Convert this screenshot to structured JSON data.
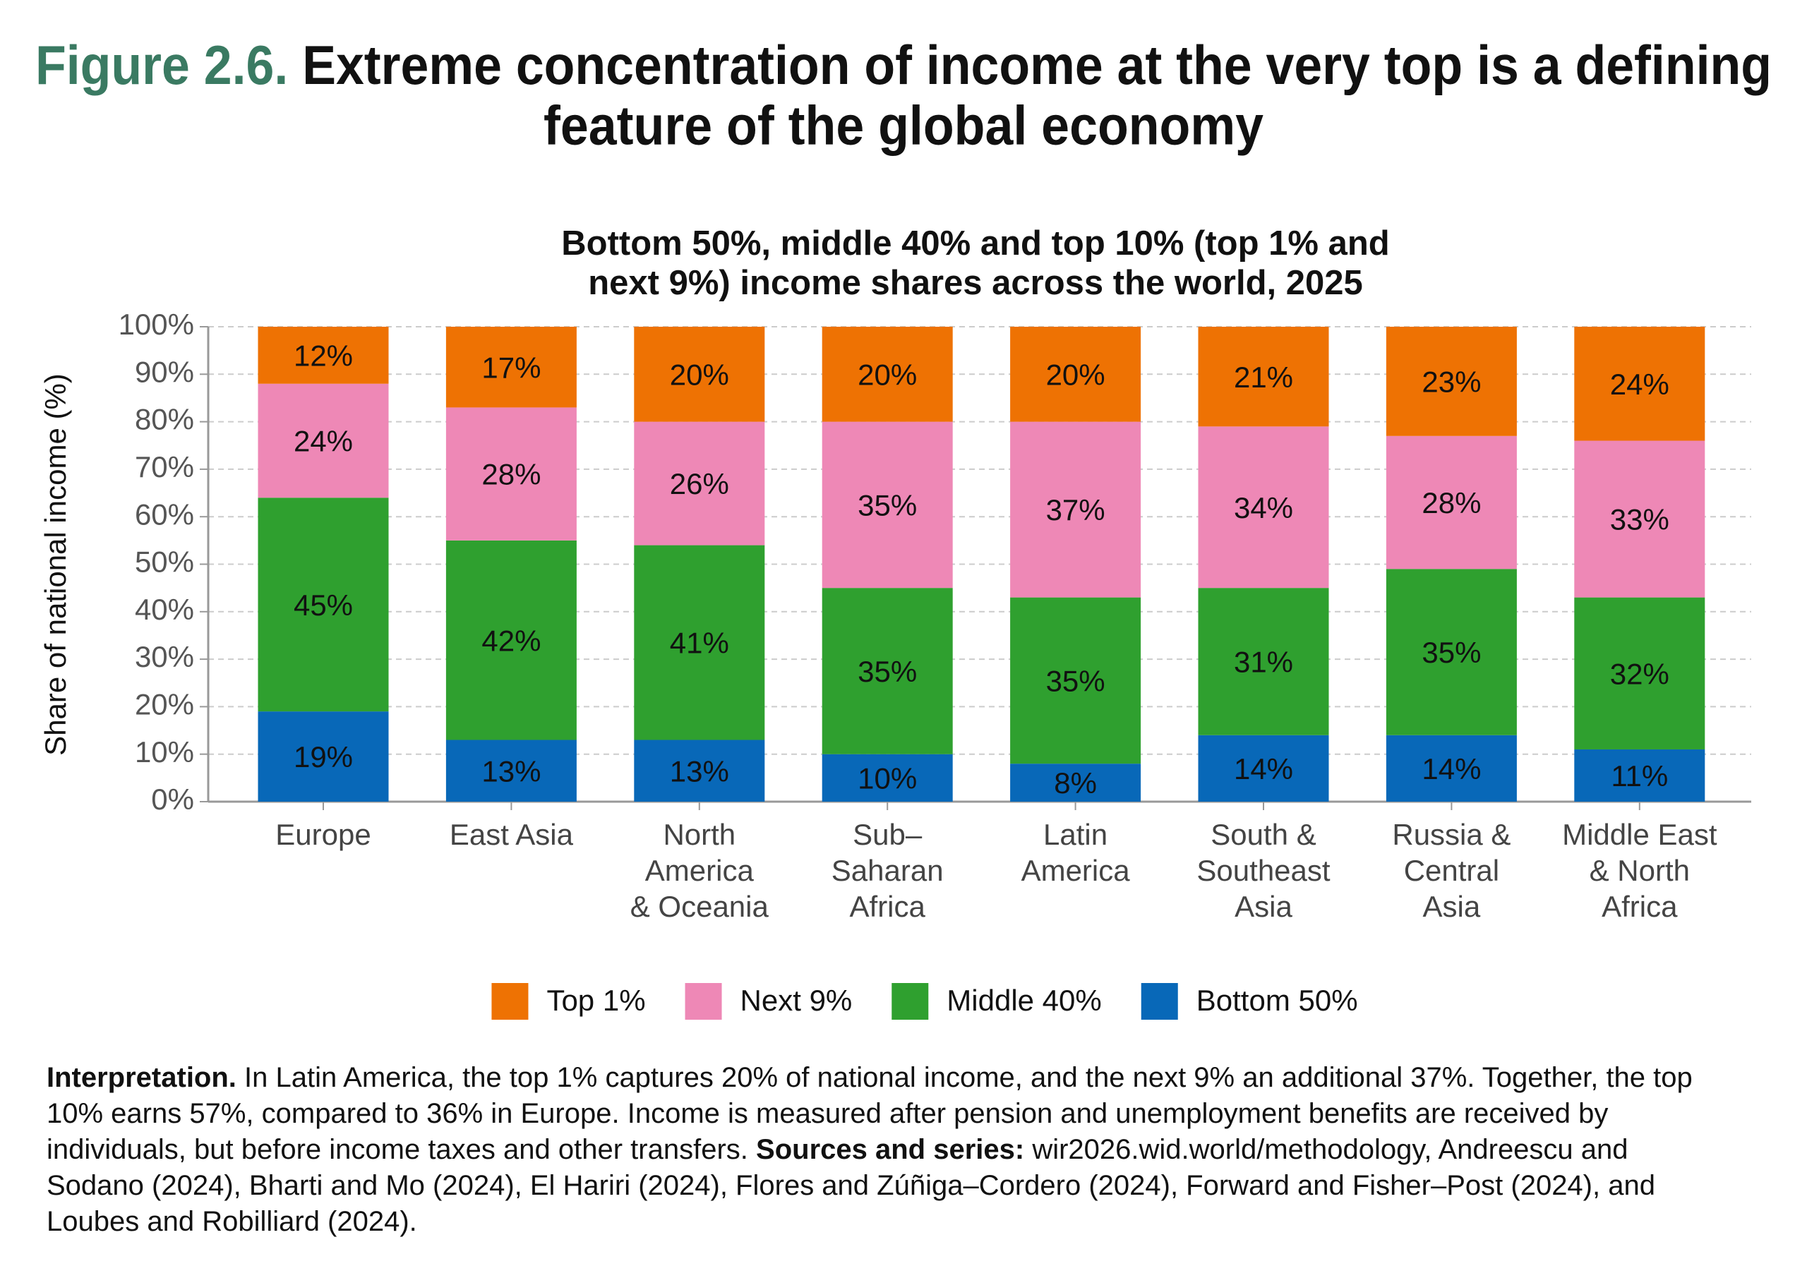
{
  "chart_data": {
    "type": "stacked_bar",
    "figure_label": "Figure 2.6.",
    "title": [
      "Extreme concentration of income at the very top is a defining",
      "feature of the global economy"
    ],
    "subtitle": [
      "Bottom 50%, middle 40% and top 10% (top 1% and",
      "next 9%) income shares across the world, 2025"
    ],
    "y_label": "Share of national income (%)",
    "categories": [
      [
        "Europe"
      ],
      [
        "East Asia"
      ],
      [
        "North",
        "America",
        "& Oceania"
      ],
      [
        "Sub–",
        "Saharan",
        "Africa"
      ],
      [
        "Latin",
        "America"
      ],
      [
        "South &",
        "Southeast",
        "Asia"
      ],
      [
        "Russia &",
        "Central",
        "Asia"
      ],
      [
        "Middle East",
        "& North",
        "Africa"
      ]
    ],
    "series": [
      {
        "name": "Top 1%",
        "color": "#ee7203",
        "values": [
          12,
          17,
          20,
          20,
          20,
          21,
          23,
          24
        ],
        "value_labels": [
          "12%",
          "17%",
          "20%",
          "20%",
          "20%",
          "21%",
          "23%",
          "24%"
        ]
      },
      {
        "name": "Next 9%",
        "color": "#ee88b6",
        "values": [
          24,
          28,
          26,
          35,
          37,
          34,
          28,
          33
        ],
        "value_labels": [
          "24%",
          "28%",
          "26%",
          "35%",
          "37%",
          "34%",
          "28%",
          "33%"
        ]
      },
      {
        "name": "Middle 40%",
        "color": "#2fa02f",
        "values": [
          45,
          42,
          41,
          35,
          35,
          31,
          35,
          32
        ],
        "value_labels": [
          "45%",
          "42%",
          "41%",
          "35%",
          "35%",
          "31%",
          "35%",
          "32%"
        ]
      },
      {
        "name": "Bottom 50%",
        "color": "#0868b8",
        "values": [
          19,
          13,
          13,
          10,
          8,
          14,
          14,
          11
        ],
        "value_labels": [
          "19%",
          "13%",
          "13%",
          "10%",
          "8%",
          "14%",
          "14%",
          "11%"
        ]
      }
    ],
    "ylim": [
      0,
      100
    ],
    "yticks": [
      {
        "value": 0,
        "label": "0%"
      },
      {
        "value": 10,
        "label": "10%"
      },
      {
        "value": 20,
        "label": "20%"
      },
      {
        "value": 30,
        "label": "30%"
      },
      {
        "value": 40,
        "label": "40%"
      },
      {
        "value": 50,
        "label": "50%"
      },
      {
        "value": 60,
        "label": "60%"
      },
      {
        "value": 70,
        "label": "70%"
      },
      {
        "value": 80,
        "label": "80%"
      },
      {
        "value": 90,
        "label": "90%"
      },
      {
        "value": 100,
        "label": "100%"
      }
    ],
    "grid": true,
    "legend": "bottom",
    "interpretation_label": "Interpretation.",
    "interpretation": "In Latin America, the top 1% captures 20% of national income, and the next 9% an additional 37%. Together, the top 10% earns 57%, compared to 36% in Europe. Income is measured after pension and unemployment benefits are received by individuals, but before income taxes and other transfers.",
    "sources_label": "Sources and series:",
    "sources": "wir2026.wid.world/methodology, Andreescu and Sodano (2024), Bharti and Mo (2024), El Hariri (2024), Flores and Zúñiga–Cordero (2024), Forward and Fisher–Post (2024), and Loubes and Robilliard (2024)."
  }
}
